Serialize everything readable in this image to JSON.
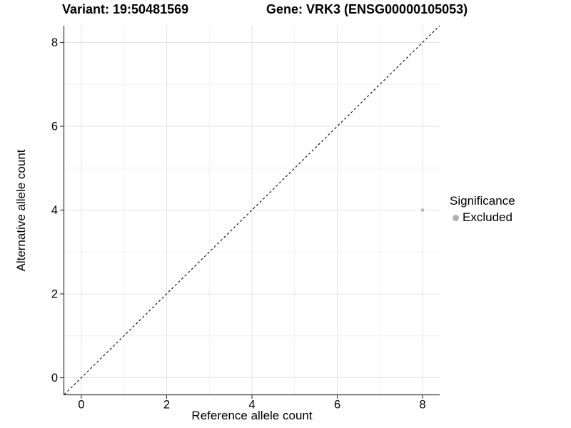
{
  "header": {
    "variant_title": "Variant: 19:50481569",
    "gene_title": "Gene: VRK3 (ENSG00000105053)"
  },
  "chart_data": {
    "type": "scatter",
    "title_left": "Variant: 19:50481569",
    "title_right": "Gene: VRK3 (ENSG00000105053)",
    "xlabel": "Reference allele count",
    "ylabel": "Alternative allele count",
    "xlim": [
      -0.4,
      8.4
    ],
    "ylim": [
      -0.4,
      8.4
    ],
    "x_ticks": [
      0,
      2,
      4,
      6,
      8
    ],
    "y_ticks": [
      0,
      2,
      4,
      6,
      8
    ],
    "minor_gridlines_x": [
      1,
      3,
      5,
      7
    ],
    "minor_gridlines_y": [
      1,
      3,
      5,
      7
    ],
    "grid": true,
    "reference_line": {
      "meaning": "identity line y = x",
      "style": "dashed",
      "color": "#000000",
      "from": [
        -0.4,
        -0.4
      ],
      "to": [
        8.4,
        8.4
      ]
    },
    "series": [
      {
        "name": "Excluded",
        "color": "#b5b5b5",
        "points": [
          {
            "x": 8,
            "y": 4
          }
        ]
      }
    ],
    "legend": {
      "title": "Significance",
      "position": "right",
      "items": [
        {
          "label": "Excluded",
          "color": "#b0b0b0"
        }
      ]
    }
  },
  "colors": {
    "background": "#ffffff",
    "axis_line": "#333333",
    "tick_text": "#000000",
    "grid_major": "#e3e3e3",
    "grid_minor": "#f0f0f0",
    "point": "#b5b5b5"
  }
}
